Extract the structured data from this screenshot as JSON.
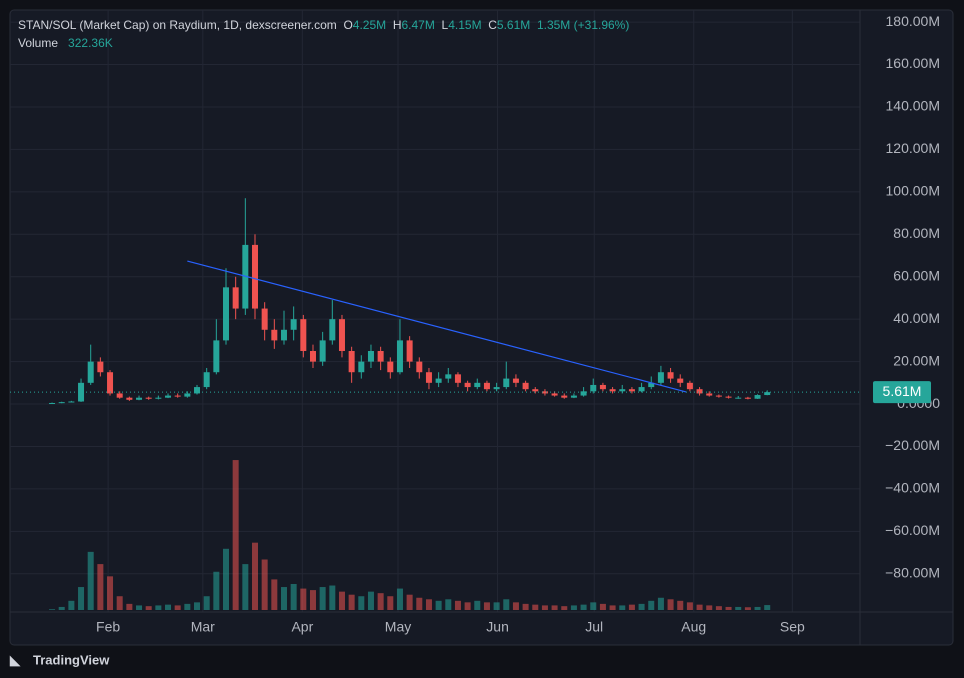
{
  "chart_data": {
    "type": "candlestick",
    "title": "STAN/SOL (Market Cap) on Raydium, 1D, dexscreener.com",
    "ohlc_labels": {
      "o": "O",
      "o_value": "4.25M",
      "h": "H",
      "h_value": "6.47M",
      "l": "L",
      "l_value": "4.15M",
      "c": "C",
      "c_value": "5.61M",
      "change": "1.35M (+31.96%)"
    },
    "volume_label": "Volume",
    "volume_value": "322.36K",
    "last_price_label": "5.61M",
    "brand": "TradingView",
    "up_color": "#26a69a",
    "down_color": "#ef5350",
    "trendline_color": "#2962ff",
    "grid": true,
    "categories": [
      null,
      null,
      null,
      null,
      null,
      null,
      null,
      null,
      null,
      null,
      null,
      null,
      null,
      null,
      null,
      null,
      null,
      null,
      null,
      null,
      null,
      null,
      null,
      null,
      null,
      null,
      null,
      null,
      null,
      null,
      null,
      null,
      null,
      null,
      null,
      null,
      null,
      null,
      null,
      null,
      null,
      null,
      null,
      null,
      null,
      null,
      null,
      null,
      null,
      null,
      null,
      null,
      null,
      null,
      null,
      null,
      null,
      null,
      null,
      null,
      null,
      null,
      null,
      null,
      null,
      null,
      null,
      null,
      null,
      null,
      null,
      null,
      null,
      null,
      null
    ],
    "open": [
      0.4,
      0.5,
      0.9,
      1.2,
      10,
      20,
      15,
      5,
      3,
      2,
      3,
      2.5,
      3,
      4,
      3.5,
      5,
      8,
      15,
      30,
      55,
      45,
      75,
      45,
      35,
      30,
      35,
      40,
      25,
      20,
      30,
      40,
      25,
      15,
      20,
      25,
      20,
      15,
      30,
      20,
      15,
      10,
      12,
      14,
      10,
      8,
      10,
      7,
      8,
      12,
      10,
      7,
      6,
      5,
      4,
      3,
      4,
      6,
      9,
      7,
      6,
      7,
      6,
      8,
      10,
      15,
      12,
      10,
      7,
      5,
      4,
      3.5,
      3,
      3,
      2.5,
      4.25
    ],
    "high": [
      0.7,
      1.1,
      1.5,
      12,
      28,
      22,
      16,
      6,
      3.5,
      4,
      3.5,
      4,
      5,
      5,
      6,
      9,
      17,
      40,
      64,
      60,
      97,
      80,
      48,
      40,
      44,
      46,
      42,
      28,
      34,
      49,
      42,
      27,
      23,
      28,
      27,
      22,
      40,
      32,
      22,
      17,
      15,
      17,
      15,
      11,
      12,
      11,
      10,
      20,
      14,
      11,
      8,
      7,
      6,
      5,
      5,
      8,
      12,
      10,
      8,
      9,
      8,
      10,
      13,
      18,
      17,
      14,
      11,
      8,
      6,
      4.5,
      4,
      3.8,
      3.4,
      4.6,
      6.47
    ],
    "low": [
      0.3,
      0.4,
      0.8,
      1,
      9,
      13,
      4,
      2.5,
      1.5,
      1.8,
      2,
      2.2,
      2.8,
      3,
      3,
      4.5,
      7,
      14,
      28,
      40,
      42,
      40,
      30,
      26,
      28,
      30,
      22,
      17,
      18,
      28,
      22,
      10,
      12,
      17,
      16,
      12,
      14,
      17,
      12,
      7,
      8,
      10,
      8,
      6,
      7,
      6,
      6,
      7,
      8,
      6,
      5,
      4,
      3.5,
      2.5,
      2.8,
      3.5,
      5,
      6,
      5,
      5,
      5,
      5.5,
      7,
      9,
      10,
      8,
      6,
      4,
      3.5,
      3,
      2.6,
      2.5,
      2.2,
      2.4,
      4.15
    ],
    "close": [
      0.5,
      0.9,
      1.2,
      10,
      20,
      15,
      5,
      3,
      2,
      3,
      2.5,
      3,
      4,
      3.5,
      5,
      8,
      15,
      30,
      55,
      45,
      75,
      45,
      35,
      30,
      35,
      40,
      25,
      20,
      30,
      40,
      25,
      15,
      20,
      25,
      20,
      15,
      30,
      20,
      15,
      10,
      12,
      14,
      10,
      8,
      10,
      7,
      8,
      12,
      10,
      7,
      6,
      5,
      4,
      3,
      4,
      6,
      9,
      7,
      6,
      7,
      6,
      8,
      10,
      15,
      12,
      10,
      7,
      5,
      4,
      3.5,
      3,
      3,
      2.5,
      4.25,
      5.61
    ],
    "volume": [
      50,
      200,
      600,
      1500,
      3800,
      3000,
      2200,
      900,
      400,
      300,
      250,
      300,
      350,
      300,
      400,
      500,
      900,
      2500,
      4000,
      9800,
      3000,
      4400,
      3300,
      2000,
      1500,
      1700,
      1400,
      1300,
      1500,
      1600,
      1200,
      1000,
      900,
      1200,
      1100,
      900,
      1400,
      1000,
      800,
      700,
      600,
      700,
      600,
      500,
      600,
      500,
      500,
      700,
      500,
      400,
      350,
      300,
      300,
      250,
      300,
      350,
      500,
      400,
      300,
      300,
      350,
      400,
      600,
      800,
      700,
      600,
      500,
      350,
      300,
      250,
      200,
      200,
      180,
      200,
      322.36
    ],
    "vlim": [
      0,
      10000
    ],
    "trendline": [
      {
        "x": 14,
        "y": 67.4
      },
      {
        "x": 65.6,
        "y": 5.7
      }
    ],
    "xlim": [
      -4.35,
      83.6
    ],
    "xticks": [
      {
        "value": 5.8,
        "label": "Feb"
      },
      {
        "value": 15.6,
        "label": "Mar"
      },
      {
        "value": 25.9,
        "label": "Apr"
      },
      {
        "value": 35.8,
        "label": "May"
      },
      {
        "value": 46.1,
        "label": "Jun"
      },
      {
        "value": 56.1,
        "label": "Jul"
      },
      {
        "value": 66.4,
        "label": "Aug"
      },
      {
        "value": 76.6,
        "label": "Sep"
      }
    ],
    "ylim": [
      -98,
      185.7
    ],
    "yticks": [
      {
        "value": 180,
        "label": "180.00M"
      },
      {
        "value": 160,
        "label": "160.00M"
      },
      {
        "value": 140,
        "label": "140.00M"
      },
      {
        "value": 120,
        "label": "120.00M"
      },
      {
        "value": 100,
        "label": "100.00M"
      },
      {
        "value": 80,
        "label": "80.00M"
      },
      {
        "value": 60,
        "label": "60.00M"
      },
      {
        "value": 40,
        "label": "40.00M"
      },
      {
        "value": 20,
        "label": "20.00M"
      },
      {
        "value": 0,
        "label": "0.0000"
      },
      {
        "value": -20,
        "label": "−20.00M"
      },
      {
        "value": -40,
        "label": "−40.00M"
      },
      {
        "value": -60,
        "label": "−60.00M"
      },
      {
        "value": -80,
        "label": "−80.00M"
      }
    ]
  }
}
